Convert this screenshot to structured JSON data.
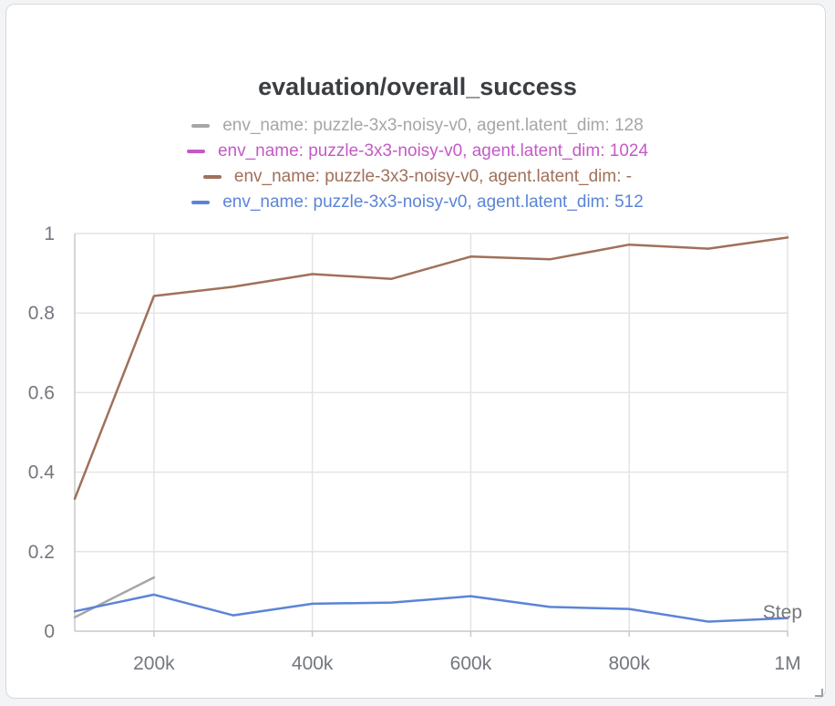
{
  "chart_data": {
    "type": "line",
    "title": "evaluation/overall_success",
    "xlabel": "Step",
    "ylabel": "",
    "xlim": [
      100000,
      1000000
    ],
    "ylim": [
      0,
      1
    ],
    "x_ticks": [
      {
        "value": 200000,
        "label": "200k"
      },
      {
        "value": 400000,
        "label": "400k"
      },
      {
        "value": 600000,
        "label": "600k"
      },
      {
        "value": 800000,
        "label": "800k"
      },
      {
        "value": 1000000,
        "label": "1M"
      }
    ],
    "y_ticks": [
      {
        "value": 0,
        "label": "0"
      },
      {
        "value": 0.2,
        "label": "0.2"
      },
      {
        "value": 0.4,
        "label": "0.4"
      },
      {
        "value": 0.6,
        "label": "0.6"
      },
      {
        "value": 0.8,
        "label": "0.8"
      },
      {
        "value": 1,
        "label": "1"
      }
    ],
    "grid": true,
    "legend_position": "top",
    "series": [
      {
        "name": "env_name: puzzle-3x3-noisy-v0, agent.latent_dim: 128",
        "color": "#a6a6a6",
        "x": [
          100000,
          200000
        ],
        "y": [
          0.035,
          0.135
        ]
      },
      {
        "name": "env_name: puzzle-3x3-noisy-v0, agent.latent_dim: 1024",
        "color": "#c45ac7",
        "x": [],
        "y": []
      },
      {
        "name": "env_name: puzzle-3x3-noisy-v0, agent.latent_dim: -",
        "color": "#a0705a",
        "x": [
          100000,
          200000,
          300000,
          400000,
          500000,
          600000,
          700000,
          800000,
          900000,
          1000000
        ],
        "y": [
          0.333,
          0.843,
          0.866,
          0.898,
          0.886,
          0.942,
          0.935,
          0.972,
          0.962,
          0.99
        ]
      },
      {
        "name": "env_name: puzzle-3x3-noisy-v0, agent.latent_dim: 512",
        "color": "#5b84d6",
        "x": [
          100000,
          200000,
          300000,
          400000,
          500000,
          600000,
          700000,
          800000,
          900000,
          1000000
        ],
        "y": [
          0.05,
          0.092,
          0.04,
          0.069,
          0.072,
          0.088,
          0.061,
          0.056,
          0.024,
          0.033
        ]
      }
    ]
  }
}
